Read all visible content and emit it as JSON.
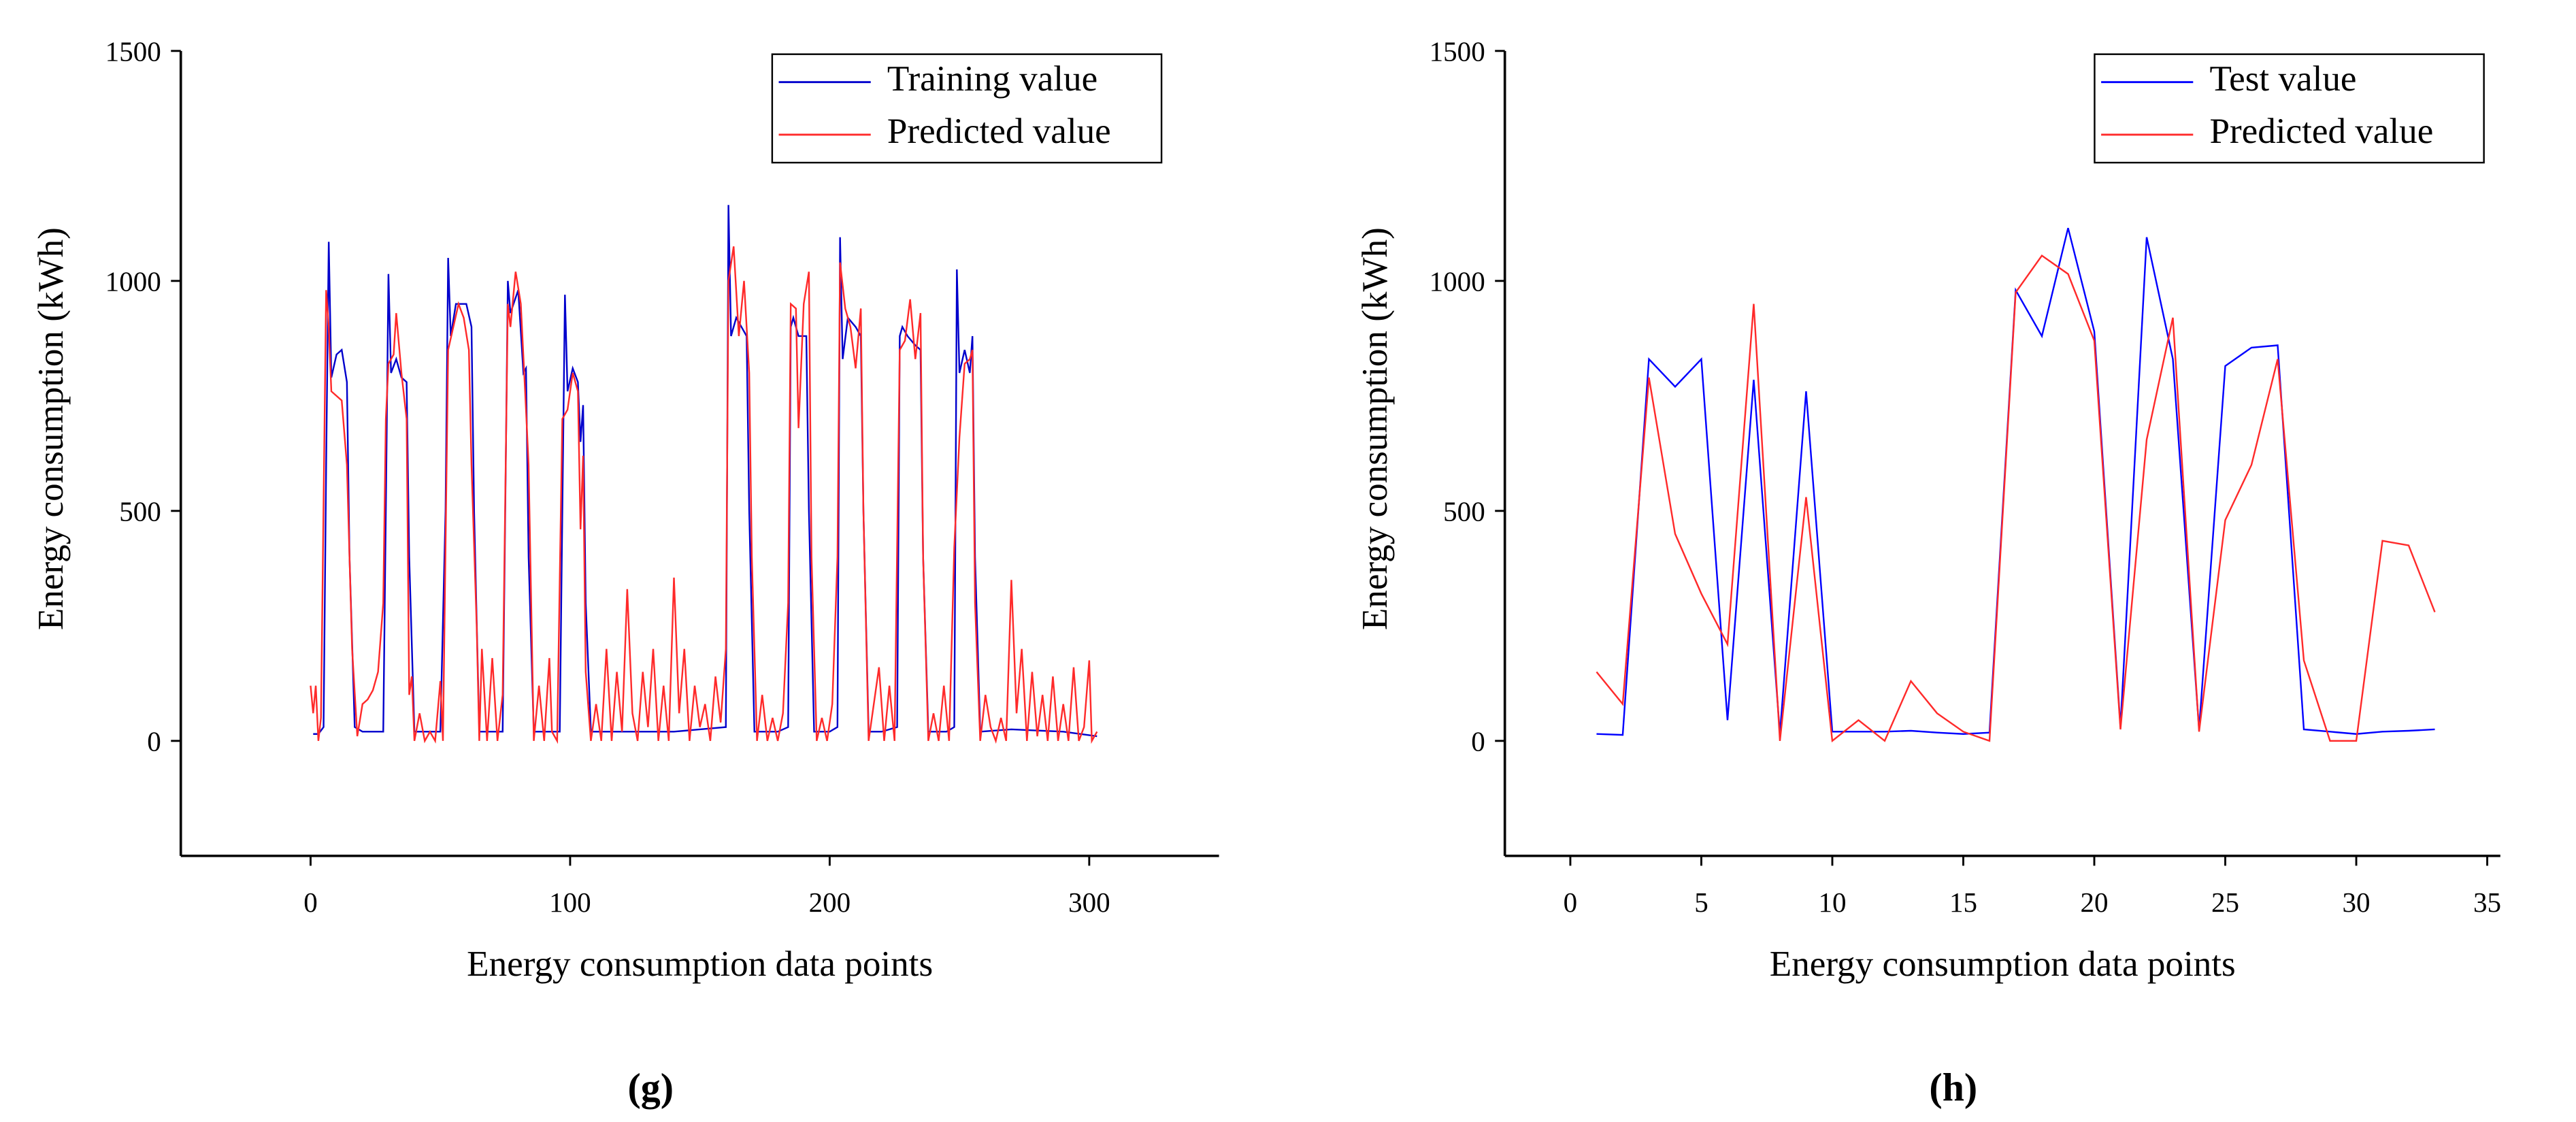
{
  "chart_data": [
    {
      "type": "line",
      "caption": "(g)",
      "xlabel": "Energy consumption data points",
      "ylabel": "Energy consumption (kWh)",
      "xlim": [
        -50,
        350
      ],
      "xticks": [
        0,
        100,
        200,
        300
      ],
      "ylim": [
        -250,
        1500
      ],
      "yticks": [
        0,
        500,
        1000,
        1500
      ],
      "legend": "upper right",
      "series": [
        {
          "name": "Training value",
          "color": "#0000cc",
          "x": [
            1,
            3,
            5,
            6,
            7,
            8,
            10,
            12,
            14,
            15,
            17,
            20,
            25,
            28,
            29,
            30,
            31,
            33,
            35,
            37,
            38,
            40,
            45,
            50,
            52,
            53,
            54,
            56,
            60,
            62,
            63,
            65,
            70,
            74,
            75,
            76,
            77,
            80,
            82,
            83,
            84,
            86,
            90,
            96,
            97,
            98,
            99,
            101,
            103,
            104,
            105,
            106,
            108,
            120,
            140,
            160,
            161,
            162,
            164,
            166,
            168,
            169,
            171,
            173,
            180,
            184,
            185,
            186,
            188,
            191,
            192,
            194,
            200,
            203,
            204,
            205,
            207,
            210,
            212,
            213,
            215,
            220,
            226,
            227,
            228,
            230,
            233,
            235,
            236,
            238,
            245,
            248,
            249,
            250,
            252,
            254,
            255,
            256,
            258,
            270,
            290,
            303
          ],
          "values": [
            15,
            15,
            30,
            600,
            1085,
            790,
            840,
            850,
            780,
            400,
            30,
            20,
            20,
            20,
            500,
            1015,
            800,
            830,
            790,
            780,
            400,
            20,
            20,
            20,
            500,
            1050,
            880,
            950,
            950,
            900,
            500,
            20,
            20,
            20,
            500,
            1000,
            930,
            980,
            800,
            810,
            400,
            20,
            20,
            20,
            500,
            970,
            760,
            810,
            780,
            650,
            730,
            300,
            20,
            20,
            20,
            30,
            1165,
            880,
            920,
            900,
            880,
            500,
            20,
            20,
            20,
            30,
            900,
            920,
            880,
            880,
            500,
            20,
            20,
            30,
            1095,
            830,
            920,
            900,
            880,
            500,
            20,
            20,
            30,
            880,
            900,
            880,
            860,
            850,
            400,
            20,
            20,
            30,
            1025,
            800,
            850,
            800,
            880,
            400,
            20,
            25,
            20,
            10
          ]
        },
        {
          "name": "Predicted value",
          "color": "#ff2a2a",
          "x": [
            0,
            1,
            2,
            3,
            4,
            6,
            7,
            8,
            10,
            12,
            14,
            16,
            18,
            20,
            22,
            24,
            26,
            28,
            29,
            30,
            32,
            33,
            35,
            37,
            38,
            39,
            40,
            42,
            44,
            46,
            48,
            50,
            51,
            53,
            55,
            57,
            59,
            61,
            62,
            64,
            65,
            66,
            68,
            70,
            72,
            74,
            76,
            77,
            79,
            81,
            83,
            84,
            86,
            88,
            90,
            92,
            93,
            95,
            97,
            99,
            101,
            103,
            104,
            105,
            106,
            108,
            110,
            112,
            114,
            116,
            118,
            120,
            122,
            124,
            126,
            128,
            130,
            132,
            134,
            136,
            138,
            140,
            142,
            144,
            146,
            148,
            150,
            152,
            154,
            156,
            158,
            160,
            161,
            163,
            165,
            167,
            169,
            170,
            172,
            174,
            176,
            178,
            180,
            182,
            184,
            185,
            187,
            188,
            190,
            192,
            193,
            195,
            197,
            199,
            201,
            203,
            204,
            206,
            208,
            210,
            212,
            213,
            215,
            217,
            219,
            221,
            223,
            225,
            227,
            229,
            231,
            233,
            235,
            236,
            238,
            240,
            242,
            244,
            246,
            248,
            250,
            252,
            254,
            255,
            256,
            258,
            260,
            262,
            264,
            266,
            268,
            270,
            272,
            274,
            276,
            278,
            280,
            282,
            284,
            286,
            288,
            290,
            292,
            294,
            296,
            298,
            300,
            301,
            303
          ],
          "values": [
            120,
            60,
            120,
            0,
            50,
            980,
            900,
            760,
            750,
            740,
            600,
            200,
            10,
            80,
            90,
            110,
            150,
            300,
            700,
            820,
            840,
            930,
            800,
            700,
            100,
            140,
            0,
            60,
            0,
            20,
            0,
            130,
            0,
            850,
            900,
            950,
            920,
            850,
            600,
            250,
            0,
            200,
            0,
            180,
            0,
            100,
            950,
            900,
            1020,
            950,
            720,
            600,
            0,
            120,
            0,
            180,
            20,
            0,
            700,
            720,
            800,
            760,
            460,
            620,
            150,
            0,
            80,
            0,
            200,
            0,
            150,
            20,
            330,
            60,
            0,
            150,
            30,
            200,
            0,
            120,
            0,
            355,
            60,
            200,
            0,
            120,
            30,
            80,
            0,
            140,
            40,
            200,
            1000,
            1075,
            880,
            1000,
            800,
            400,
            0,
            100,
            0,
            50,
            0,
            60,
            300,
            950,
            940,
            680,
            950,
            1020,
            400,
            0,
            50,
            0,
            80,
            400,
            1040,
            940,
            900,
            810,
            940,
            500,
            0,
            80,
            160,
            0,
            120,
            0,
            850,
            870,
            960,
            830,
            930,
            400,
            0,
            60,
            0,
            120,
            0,
            420,
            660,
            820,
            830,
            850,
            300,
            0,
            100,
            30,
            0,
            50,
            0,
            350,
            60,
            200,
            0,
            150,
            10,
            100,
            0,
            140,
            0,
            80,
            0,
            160,
            0,
            30,
            175,
            0,
            20
          ]
        }
      ]
    },
    {
      "type": "line",
      "caption": "(h)",
      "xlabel": "Energy consumption data points",
      "ylabel": "Energy consumption (kWh)",
      "xlim": [
        -2.5,
        35.5
      ],
      "xticks": [
        0,
        5,
        10,
        15,
        20,
        25,
        30,
        35
      ],
      "ylim": [
        -250,
        1500
      ],
      "yticks": [
        0,
        500,
        1000,
        1500
      ],
      "legend": "upper right",
      "series": [
        {
          "name": "Test value",
          "color": "#0000ff",
          "x": [
            1,
            2,
            3,
            4,
            5,
            6,
            7,
            8,
            9,
            10,
            11,
            12,
            13,
            14,
            15,
            16,
            17,
            18,
            19,
            20,
            21,
            22,
            23,
            24,
            25,
            26,
            27,
            28,
            29,
            30,
            31,
            32,
            33
          ],
          "values": [
            15,
            13,
            830,
            770,
            830,
            45,
            785,
            15,
            760,
            20,
            20,
            20,
            22,
            18,
            15,
            18,
            980,
            880,
            1115,
            890,
            30,
            1095,
            830,
            25,
            815,
            855,
            860,
            25,
            20,
            15,
            20,
            22,
            25
          ]
        },
        {
          "name": "Predicted value",
          "color": "#ff2a2a",
          "x": [
            1,
            2,
            3,
            4,
            5,
            6,
            7,
            8,
            9,
            10,
            11,
            12,
            13,
            14,
            15,
            16,
            17,
            18,
            19,
            20,
            21,
            22,
            23,
            24,
            25,
            26,
            27,
            28,
            29,
            30,
            31,
            32,
            33
          ],
          "values": [
            150,
            80,
            790,
            450,
            320,
            210,
            950,
            0,
            530,
            0,
            45,
            0,
            130,
            60,
            20,
            0,
            975,
            1055,
            1015,
            870,
            25,
            655,
            920,
            20,
            480,
            600,
            830,
            175,
            0,
            0,
            435,
            425,
            280
          ]
        }
      ]
    }
  ]
}
